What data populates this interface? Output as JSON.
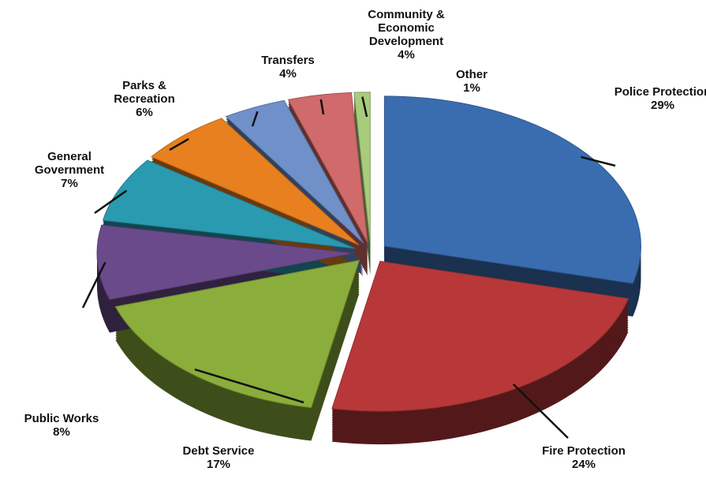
{
  "chart_data": {
    "type": "pie",
    "categories": [
      "Police Protection",
      "Fire Protection",
      "Debt Service",
      "Public Works",
      "General Government",
      "Parks & Recreation",
      "Transfers",
      "Community & Economic Development",
      "Other"
    ],
    "values": [
      29,
      24,
      17,
      8,
      7,
      6,
      4,
      4,
      1
    ],
    "value_labels": [
      "29%",
      "24%",
      "17%",
      "8%",
      "7%",
      "6%",
      "4%",
      "4%",
      "1%"
    ],
    "colors": [
      "#3a6db0",
      "#b8383a",
      "#8aad3b",
      "#6b4a8c",
      "#2a9ab0",
      "#e8801f",
      "#6f90c9",
      "#d06a6b",
      "#a8cc7b"
    ]
  }
}
